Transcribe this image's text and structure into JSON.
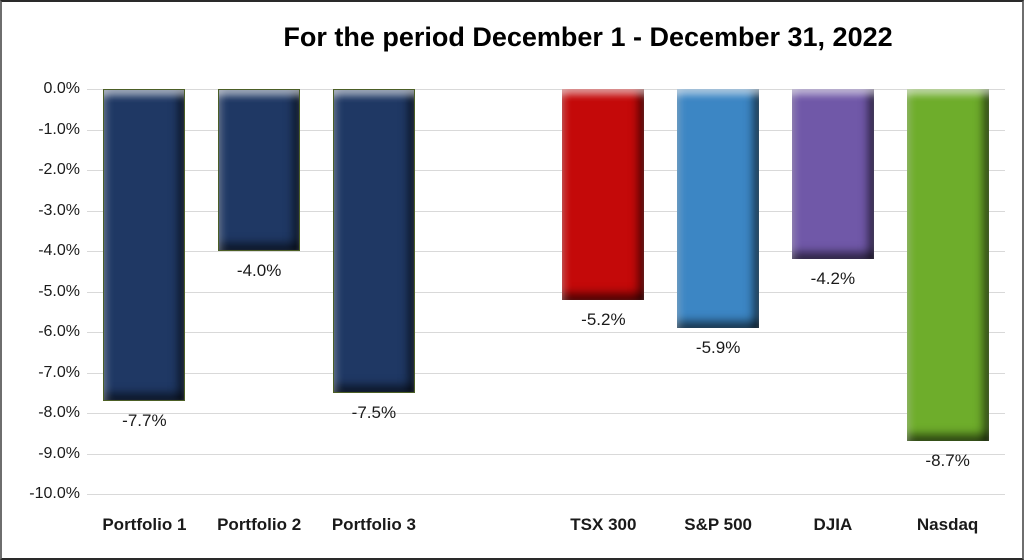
{
  "chart_data": {
    "type": "bar",
    "title": "For the period December 1 - December 31, 2022",
    "categories": [
      "Portfolio 1",
      "Portfolio 2",
      "Portfolio 3",
      "",
      "TSX 300",
      "S&P 500",
      "DJIA",
      "Nasdaq"
    ],
    "values": [
      -7.7,
      -4.0,
      -7.5,
      null,
      -5.2,
      -5.9,
      -4.2,
      -8.7
    ],
    "data_labels": [
      "-7.7%",
      "-4.0%",
      "-7.5%",
      "",
      "-5.2%",
      "-5.9%",
      "-4.2%",
      "-8.7%"
    ],
    "bar_colors": [
      "#1F3864",
      "#1F3864",
      "#1F3864",
      null,
      "#C40909",
      "#3C86C4",
      "#7058A8",
      "#6EAD2B"
    ],
    "bar_border_colors": [
      "#4C5F26",
      "#4C5F26",
      "#4C5F26",
      null,
      null,
      null,
      null,
      null
    ],
    "xlabel": "",
    "ylabel": "",
    "ylim": [
      -10,
      0
    ],
    "ytick_step": 1,
    "ytick_labels": [
      "0.0%",
      "-1.0%",
      "-2.0%",
      "-3.0%",
      "-4.0%",
      "-5.0%",
      "-6.0%",
      "-7.0%",
      "-8.0%",
      "-9.0%",
      "-10.0%"
    ],
    "grid": true,
    "gridline_color": "#D9D9D9",
    "legend": "none",
    "text_color": "#1a1a1a"
  }
}
